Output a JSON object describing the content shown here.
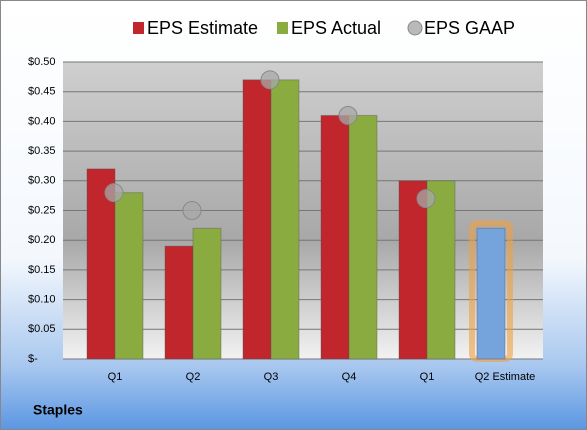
{
  "chart_data": {
    "type": "bar",
    "categories": [
      "Q1",
      "Q2",
      "Q3",
      "Q4",
      "Q1",
      "Q2 Estimate"
    ],
    "series": [
      {
        "name": "EPS Estimate",
        "color": "#c0262b",
        "values": [
          0.32,
          0.19,
          0.47,
          0.41,
          0.3,
          0.22
        ]
      },
      {
        "name": "EPS Actual",
        "color": "#8aab3f",
        "values": [
          0.28,
          0.22,
          0.47,
          0.41,
          0.3,
          null
        ]
      },
      {
        "name": "EPS GAAP",
        "color": "#a8a8a8",
        "marker": "circle",
        "values": [
          0.28,
          0.25,
          0.47,
          0.41,
          0.27,
          null
        ]
      }
    ],
    "highlight": {
      "series": 0,
      "index": 5,
      "color": "#75a3dc",
      "glow_color": "#f0a040"
    },
    "ylim": [
      0,
      0.5
    ],
    "yticks": [
      {
        "value": 0,
        "label": "$-"
      },
      {
        "value": 0.05,
        "label": "$0.05"
      },
      {
        "value": 0.1,
        "label": "$0.10"
      },
      {
        "value": 0.15,
        "label": "$0.15"
      },
      {
        "value": 0.2,
        "label": "$0.20"
      },
      {
        "value": 0.25,
        "label": "$0.25"
      },
      {
        "value": 0.3,
        "label": "$0.30"
      },
      {
        "value": 0.35,
        "label": "$0.35"
      },
      {
        "value": 0.4,
        "label": "$0.40"
      },
      {
        "value": 0.45,
        "label": "$0.45"
      },
      {
        "value": 0.5,
        "label": "$0.50"
      }
    ],
    "grid": true,
    "legend": "top",
    "company": "Staples"
  }
}
